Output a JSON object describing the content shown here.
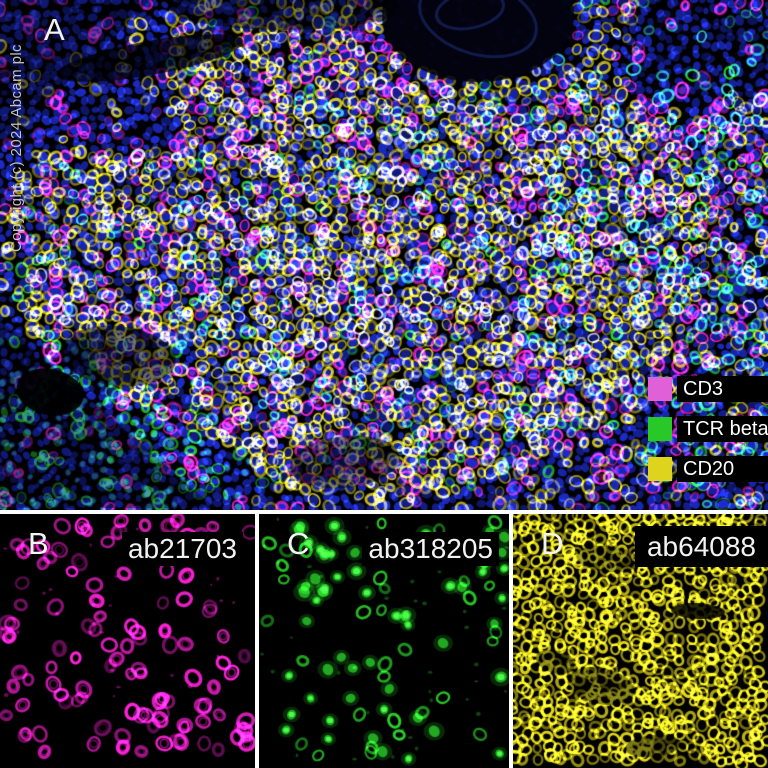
{
  "figure": {
    "copyright": "Copyright (c) 2024 Abcam plc",
    "panel_a": {
      "label": "A"
    },
    "panel_b": {
      "label": "B",
      "catalog": "ab21703"
    },
    "panel_c": {
      "label": "C",
      "catalog": "ab318205"
    },
    "panel_d": {
      "label": "D",
      "catalog": "ab64088"
    },
    "legend": {
      "items": [
        {
          "label": "CD3",
          "color": "#e060d8"
        },
        {
          "label": "TCR beta",
          "color": "#28c828"
        },
        {
          "label": "CD20",
          "color": "#ded41e"
        }
      ]
    }
  },
  "stains": {
    "dapi_blue": "#1e2ed7",
    "cd3_magenta": "#ff22d6",
    "tcr_green": "#2ee82e",
    "cd20_yellow": "#e6da1c",
    "membrane_white": "#e8e8ff",
    "accent_cyan": "#38e0d8",
    "background": "#000000"
  }
}
